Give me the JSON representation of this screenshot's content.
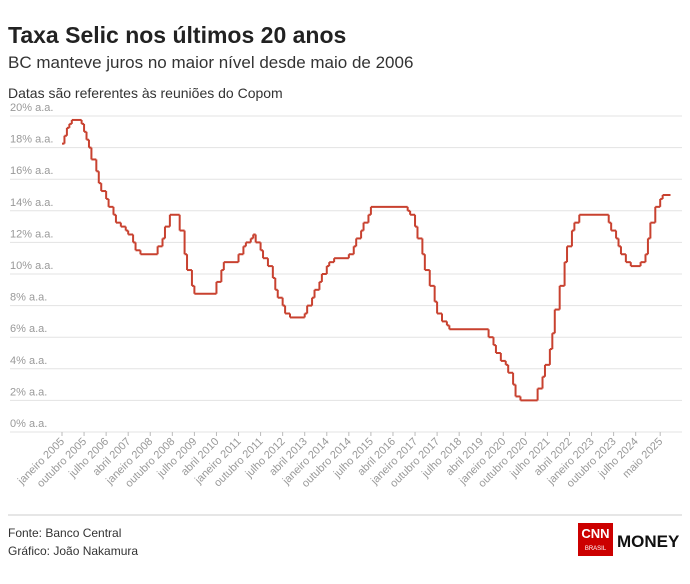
{
  "chart_data": {
    "type": "step-line",
    "title": "Taxa Selic nos últimos 20 anos",
    "subtitle": "BC manteve juros no maior nível desde maio de 2006",
    "note": "Datas são referentes às reuniões do Copom",
    "source": "Fonte: Banco Central",
    "credit": "Gráfico: João Nakamura",
    "logo": {
      "cnn": "CNN",
      "brasil": "BRASIL",
      "money": "MONEY"
    },
    "xlim": [
      "2005-01",
      "2025-09"
    ],
    "ylim": [
      0,
      20
    ],
    "grid": true,
    "yticks": [
      {
        "value": 0,
        "label": "0% a.a."
      },
      {
        "value": 2,
        "label": "2% a.a."
      },
      {
        "value": 4,
        "label": "4% a.a."
      },
      {
        "value": 6,
        "label": "6% a.a."
      },
      {
        "value": 8,
        "label": "8% a.a."
      },
      {
        "value": 10,
        "label": "10% a.a."
      },
      {
        "value": 12,
        "label": "12% a.a."
      },
      {
        "value": 14,
        "label": "14% a.a."
      },
      {
        "value": 16,
        "label": "16% a.a."
      },
      {
        "value": 18,
        "label": "18% a.a."
      },
      {
        "value": 20,
        "label": "20% a.a."
      }
    ],
    "xticks": [
      {
        "value": "2005-01",
        "label": "janeiro 2005"
      },
      {
        "value": "2005-10",
        "label": "outubro 2005"
      },
      {
        "value": "2006-07",
        "label": "julho 2006"
      },
      {
        "value": "2007-04",
        "label": "abril 2007"
      },
      {
        "value": "2008-01",
        "label": "janeiro 2008"
      },
      {
        "value": "2008-10",
        "label": "outubro 2008"
      },
      {
        "value": "2009-07",
        "label": "julho 2009"
      },
      {
        "value": "2010-04",
        "label": "abril 2010"
      },
      {
        "value": "2011-01",
        "label": "janeiro 2011"
      },
      {
        "value": "2011-10",
        "label": "outubro 2011"
      },
      {
        "value": "2012-07",
        "label": "julho 2012"
      },
      {
        "value": "2013-04",
        "label": "abril 2013"
      },
      {
        "value": "2014-01",
        "label": "janeiro 2014"
      },
      {
        "value": "2014-10",
        "label": "outubro 2014"
      },
      {
        "value": "2015-07",
        "label": "julho 2015"
      },
      {
        "value": "2016-04",
        "label": "abril 2016"
      },
      {
        "value": "2017-01",
        "label": "janeiro 2017"
      },
      {
        "value": "2017-10",
        "label": "outubro 2017"
      },
      {
        "value": "2018-07",
        "label": "julho 2018"
      },
      {
        "value": "2019-04",
        "label": "abril 2019"
      },
      {
        "value": "2020-01",
        "label": "janeiro 2020"
      },
      {
        "value": "2020-10",
        "label": "outubro 2020"
      },
      {
        "value": "2021-07",
        "label": "julho 2021"
      },
      {
        "value": "2022-04",
        "label": "abril 2022"
      },
      {
        "value": "2023-01",
        "label": "janeiro 2023"
      },
      {
        "value": "2023-10",
        "label": "outubro 2023"
      },
      {
        "value": "2024-07",
        "label": "julho 2024"
      },
      {
        "value": "2025-05",
        "label": "maio 2025"
      }
    ],
    "color": "#c8412f",
    "x": [
      "2005-01",
      "2005-02",
      "2005-03",
      "2005-04",
      "2005-05",
      "2005-09",
      "2005-10",
      "2005-11",
      "2005-12",
      "2006-01",
      "2006-03",
      "2006-04",
      "2006-05",
      "2006-07",
      "2006-08",
      "2006-10",
      "2006-11",
      "2007-01",
      "2007-03",
      "2007-04",
      "2007-06",
      "2007-07",
      "2007-09",
      "2008-04",
      "2008-06",
      "2008-07",
      "2008-09",
      "2009-01",
      "2009-03",
      "2009-04",
      "2009-06",
      "2009-07",
      "2010-04",
      "2010-06",
      "2010-07",
      "2011-01",
      "2011-03",
      "2011-04",
      "2011-06",
      "2011-07",
      "2011-08",
      "2011-10",
      "2011-11",
      "2012-01",
      "2012-03",
      "2012-04",
      "2012-05",
      "2012-07",
      "2012-08",
      "2012-10",
      "2013-04",
      "2013-05",
      "2013-07",
      "2013-08",
      "2013-10",
      "2013-11",
      "2014-01",
      "2014-02",
      "2014-04",
      "2014-10",
      "2014-12",
      "2015-01",
      "2015-03",
      "2015-04",
      "2015-06",
      "2015-07",
      "2016-10",
      "2016-11",
      "2017-01",
      "2017-02",
      "2017-04",
      "2017-05",
      "2017-07",
      "2017-09",
      "2017-10",
      "2017-12",
      "2018-02",
      "2018-03",
      "2019-07",
      "2019-09",
      "2019-10",
      "2019-12",
      "2020-02",
      "2020-03",
      "2020-05",
      "2020-06",
      "2020-08",
      "2021-03",
      "2021-05",
      "2021-06",
      "2021-08",
      "2021-09",
      "2021-10",
      "2021-12",
      "2022-02",
      "2022-03",
      "2022-05",
      "2022-06",
      "2022-08",
      "2023-08",
      "2023-09",
      "2023-11",
      "2023-12",
      "2024-01",
      "2024-03",
      "2024-05",
      "2024-09",
      "2024-11",
      "2024-12",
      "2025-01",
      "2025-03",
      "2025-05",
      "2025-06",
      "2025-09"
    ],
    "values": [
      18.25,
      18.75,
      19.25,
      19.5,
      19.75,
      19.5,
      19.0,
      18.5,
      18.0,
      17.25,
      16.5,
      15.75,
      15.25,
      14.75,
      14.25,
      13.75,
      13.25,
      13.0,
      12.75,
      12.5,
      12.0,
      11.5,
      11.25,
      11.75,
      12.25,
      13.0,
      13.75,
      12.75,
      11.25,
      10.25,
      9.25,
      8.75,
      9.5,
      10.25,
      10.75,
      11.25,
      11.75,
      12.0,
      12.25,
      12.5,
      12.0,
      11.5,
      11.0,
      10.5,
      9.75,
      9.0,
      8.5,
      8.0,
      7.5,
      7.25,
      7.5,
      8.0,
      8.5,
      9.0,
      9.5,
      10.0,
      10.5,
      10.75,
      11.0,
      11.25,
      11.75,
      12.25,
      12.75,
      13.25,
      13.75,
      14.25,
      14.0,
      13.75,
      13.0,
      12.25,
      11.25,
      10.25,
      9.25,
      8.25,
      7.5,
      7.0,
      6.75,
      6.5,
      6.0,
      5.5,
      5.0,
      4.5,
      4.25,
      3.75,
      3.0,
      2.25,
      2.0,
      2.75,
      3.5,
      4.25,
      5.25,
      6.25,
      7.75,
      9.25,
      10.75,
      11.75,
      12.75,
      13.25,
      13.75,
      13.25,
      12.75,
      12.25,
      11.75,
      11.25,
      10.75,
      10.5,
      10.75,
      11.25,
      12.25,
      13.25,
      14.25,
      14.75,
      15.0,
      15.0
    ]
  }
}
